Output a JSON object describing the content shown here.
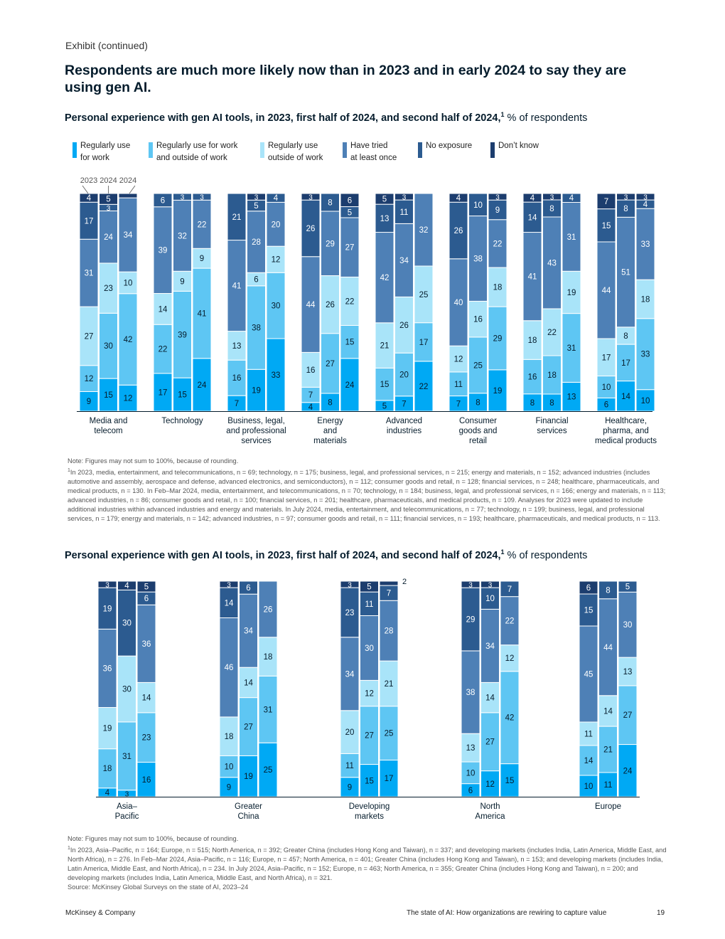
{
  "exhibit_label": "Exhibit (continued)",
  "headline": "Respondents are much more likely now than in 2023 and in early 2024 to say they are using gen AI.",
  "colors": {
    "regular_work": "#00a9f4",
    "regular_both": "#5ec6f3",
    "regular_outside": "#a9e4f9",
    "tried": "#4e80b6",
    "no_exposure": "#2c5b90",
    "dont_know": "#1c3d6e"
  },
  "legend": [
    {
      "key": "regular_work",
      "label": "Regularly use\nfor work"
    },
    {
      "key": "regular_both",
      "label": "Regularly use for work\nand outside of work"
    },
    {
      "key": "regular_outside",
      "label": "Regularly use\noutside of work"
    },
    {
      "key": "tried",
      "label": "Have tried\nat least once"
    },
    {
      "key": "no_exposure",
      "label": "No exposure"
    },
    {
      "key": "dont_know",
      "label": "Don’t know"
    }
  ],
  "chart_data": [
    {
      "type": "bar",
      "stacked": true,
      "title": "Personal experience with gen AI tools, in 2023, first half of 2024, and second half of 2024,",
      "title_footnote": "1",
      "unit": "% of respondents",
      "bar_labels": [
        "2023",
        "2024",
        "2024"
      ],
      "series_order": [
        "regular_work",
        "regular_both",
        "regular_outside",
        "tried",
        "no_exposure",
        "dont_know"
      ],
      "groups": [
        {
          "name": "Media and\ntelecom",
          "bars": [
            [
              9,
              12,
              27,
              31,
              17,
              4
            ],
            [
              15,
              30,
              23,
              24,
              3,
              5
            ],
            [
              12,
              42,
              10,
              34,
              null,
              2
            ]
          ]
        },
        {
          "name": "Technology",
          "bars": [
            [
              17,
              22,
              14,
              39,
              6,
              null
            ],
            [
              15,
              39,
              9,
              32,
              3,
              null
            ],
            [
              24,
              41,
              9,
              22,
              3,
              null
            ]
          ]
        },
        {
          "name": "Business, legal,\nand professional\nservices",
          "bars": [
            [
              7,
              16,
              13,
              41,
              21,
              null
            ],
            [
              19,
              38,
              6,
              28,
              5,
              3
            ],
            [
              33,
              30,
              12,
              20,
              4,
              null
            ]
          ]
        },
        {
          "name": "Energy\nand\nmaterials",
          "bars": [
            [
              4,
              7,
              16,
              44,
              26,
              3
            ],
            [
              8,
              27,
              26,
              29,
              8,
              null
            ],
            [
              24,
              15,
              22,
              27,
              5,
              6
            ]
          ]
        },
        {
          "name": "Advanced\nindustries",
          "bars": [
            [
              5,
              15,
              21,
              42,
              13,
              5
            ],
            [
              7,
              20,
              26,
              34,
              11,
              3
            ],
            [
              22,
              17,
              25,
              32,
              null,
              null
            ]
          ]
        },
        {
          "name": "Consumer\ngoods and\nretail",
          "bars": [
            [
              7,
              11,
              12,
              40,
              26,
              4
            ],
            [
              8,
              25,
              16,
              38,
              10,
              null
            ],
            [
              19,
              29,
              18,
              22,
              9,
              3
            ]
          ]
        },
        {
          "name": "Financial\nservices",
          "bars": [
            [
              8,
              16,
              18,
              41,
              14,
              4
            ],
            [
              8,
              18,
              22,
              43,
              8,
              3
            ],
            [
              13,
              31,
              19,
              31,
              4,
              null
            ]
          ]
        },
        {
          "name": "Healthcare,\npharma, and\nmedical products",
          "bars": [
            [
              6,
              10,
              17,
              44,
              15,
              7
            ],
            [
              14,
              17,
              8,
              51,
              8,
              3
            ],
            [
              10,
              33,
              18,
              33,
              4,
              3
            ]
          ]
        }
      ]
    },
    {
      "type": "bar",
      "stacked": true,
      "title": "Personal experience with gen AI tools, in 2023, first half of 2024, and second half of 2024,",
      "title_footnote": "1",
      "unit": "% of respondents",
      "series_order": [
        "regular_work",
        "regular_both",
        "regular_outside",
        "tried",
        "no_exposure",
        "dont_know"
      ],
      "groups": [
        {
          "name": "Asia–\nPacific",
          "bars": [
            [
              4,
              18,
              19,
              36,
              19,
              3
            ],
            [
              3,
              31,
              30,
              null,
              30,
              4
            ],
            [
              16,
              23,
              14,
              36,
              6,
              5
            ]
          ]
        },
        {
          "name": "Greater\nChina",
          "bars": [
            [
              9,
              10,
              18,
              46,
              14,
              3
            ],
            [
              19,
              27,
              14,
              34,
              6,
              null
            ],
            [
              25,
              31,
              18,
              26,
              null,
              null
            ]
          ]
        },
        {
          "name": "Developing\nmarkets",
          "bars": [
            [
              9,
              11,
              20,
              34,
              23,
              3
            ],
            [
              15,
              27,
              12,
              30,
              11,
              5
            ],
            [
              17,
              25,
              21,
              28,
              7,
              2
            ]
          ]
        },
        {
          "name": "North\nAmerica",
          "bars": [
            [
              6,
              10,
              13,
              38,
              29,
              3
            ],
            [
              12,
              27,
              14,
              34,
              10,
              3
            ],
            [
              15,
              42,
              12,
              22,
              7,
              null
            ]
          ]
        },
        {
          "name": "Europe",
          "bars": [
            [
              10,
              14,
              11,
              45,
              15,
              6
            ],
            [
              11,
              21,
              14,
              44,
              8,
              null
            ],
            [
              24,
              27,
              13,
              30,
              5,
              null
            ]
          ]
        }
      ]
    }
  ],
  "note1": {
    "line1": "Note: Figures may not sum to 100%, because of rounding.",
    "fn_mark": "1",
    "text": "In 2023, media, entertainment, and telecommunications, n = 69; technology, n = 175; business, legal, and professional services, n = 215; energy and materials, n = 152; advanced industries (includes automotive and assembly, aerospace and defense, advanced electronics, and semiconductors), n = 112; consumer goods and retail, n = 128; financial services, n = 248; healthcare, pharmaceuticals, and medical products, n = 130. In Feb–Mar 2024, media, entertainment, and telecommunications, n = 70; technology, n = 184; business, legal, and professional services, n = 166; energy and materials, n = 113; advanced industries, n = 86; consumer goods and retail, n = 100; financial services, n = 201; healthcare, pharmaceuticals, and medical products, n = 109. Analyses for 2023 were updated to include additional industries within advanced industries and energy and materials. In July 2024, media, entertainment, and telecommunications, n = 77; technology, n = 199; business, legal, and professional services, n = 179; energy and materials, n = 142; advanced industries, n = 97; consumer goods and retail, n = 111; financial services, n = 193; healthcare, pharmaceuticals, and medical products, n = 113."
  },
  "note2": {
    "line1": "Note: Figures may not sum to 100%, because of rounding.",
    "fn_mark": "1",
    "text": "In 2023, Asia–Pacific, n = 164; Europe, n = 515; North America, n = 392; Greater China (includes Hong Kong and Taiwan), n = 337; and developing markets (includes India, Latin America, Middle East, and North Africa), n = 276.  In Feb–Mar 2024, Asia–Pacific, n = 116; Europe, n = 457; North America, n = 401; Greater China (includes Hong Kong and Taiwan), n = 153; and developing markets (includes India, Latin America, Middle East, and North Africa), n = 234. In  July 2024, Asia–Pacific, n = 152; Europe, n = 463; North America, n = 355; Greater China (includes Hong Kong and Taiwan), n = 200; and developing markets (includes India, Latin America, Middle East, and North Africa), n = 321.",
    "source": "Source: McKinsey Global Surveys on the state of AI, 2023–24"
  },
  "footer": {
    "left": "McKinsey & Company",
    "right": "The state of AI: How organizations are rewiring to capture value",
    "page": "19"
  }
}
